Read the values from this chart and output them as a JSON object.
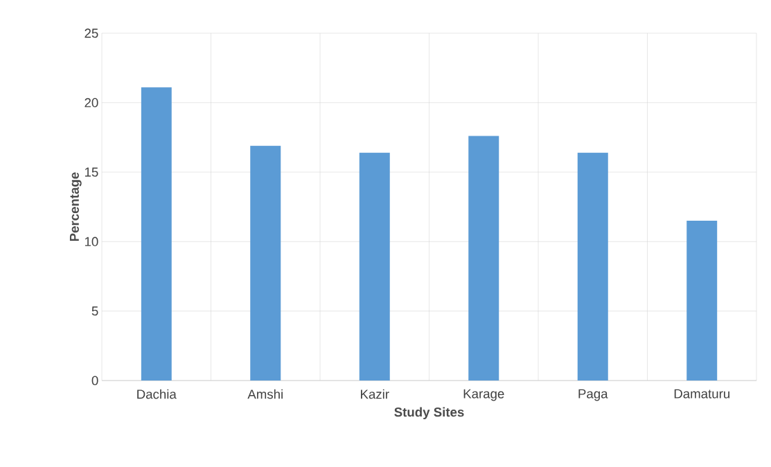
{
  "chart_data": {
    "type": "bar",
    "xlabel": "Study Sites",
    "ylabel": "Percentage",
    "categories": [
      "Dachia",
      "Amshi",
      "Kazir",
      "Karage",
      "Paga",
      "Damaturu"
    ],
    "values": [
      21.1,
      16.9,
      16.4,
      17.6,
      16.4,
      11.5
    ],
    "color": "#5b9bd5",
    "ylim": [
      0,
      25
    ],
    "yticks": [
      0,
      5,
      10,
      15,
      20,
      25
    ],
    "grid": true
  }
}
